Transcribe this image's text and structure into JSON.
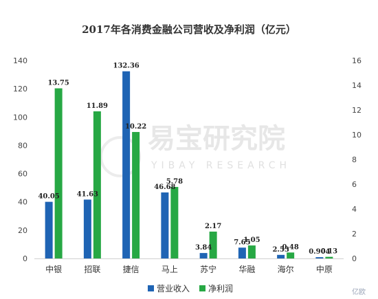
{
  "chart_data": {
    "type": "bar",
    "title": "2017年各消费金融公司营收及净利润（亿元）",
    "categories": [
      "中银",
      "招联",
      "捷信",
      "马上",
      "苏宁",
      "华融",
      "海尔",
      "中原"
    ],
    "series": [
      {
        "name": "营业收入",
        "axis": "left",
        "color": "#1f64b4",
        "values": [
          40.05,
          41.63,
          132.36,
          46.68,
          3.84,
          7.65,
          2.53,
          0.904
        ],
        "labels": [
          "40.05",
          "41.63",
          "132.36",
          "46.68",
          "3.84",
          "7.65",
          "2.53",
          "0.904"
        ]
      },
      {
        "name": "净利润",
        "axis": "right",
        "color": "#27a844",
        "values": [
          13.75,
          11.89,
          10.22,
          5.78,
          2.17,
          1.05,
          0.48,
          0.13
        ],
        "labels": [
          "13.75",
          "11.89",
          "10.22",
          "5.78",
          "2.17",
          "1.05",
          "0.48",
          "0.13"
        ]
      }
    ],
    "y_left": {
      "ylim": [
        0,
        140
      ],
      "ticks": [
        "0",
        "20",
        "40",
        "60",
        "80",
        "100",
        "120",
        "140"
      ]
    },
    "y_right": {
      "ylim": [
        0,
        16
      ],
      "ticks": [
        "0",
        "2",
        "4",
        "6",
        "8",
        "10",
        "12",
        "14",
        "16"
      ]
    },
    "grid": false,
    "legend_position": "bottom-center"
  },
  "watermark": {
    "text": "易宝研究院",
    "subtext": "YIBAY RESEARCH"
  },
  "corner_mark": "亿欧"
}
